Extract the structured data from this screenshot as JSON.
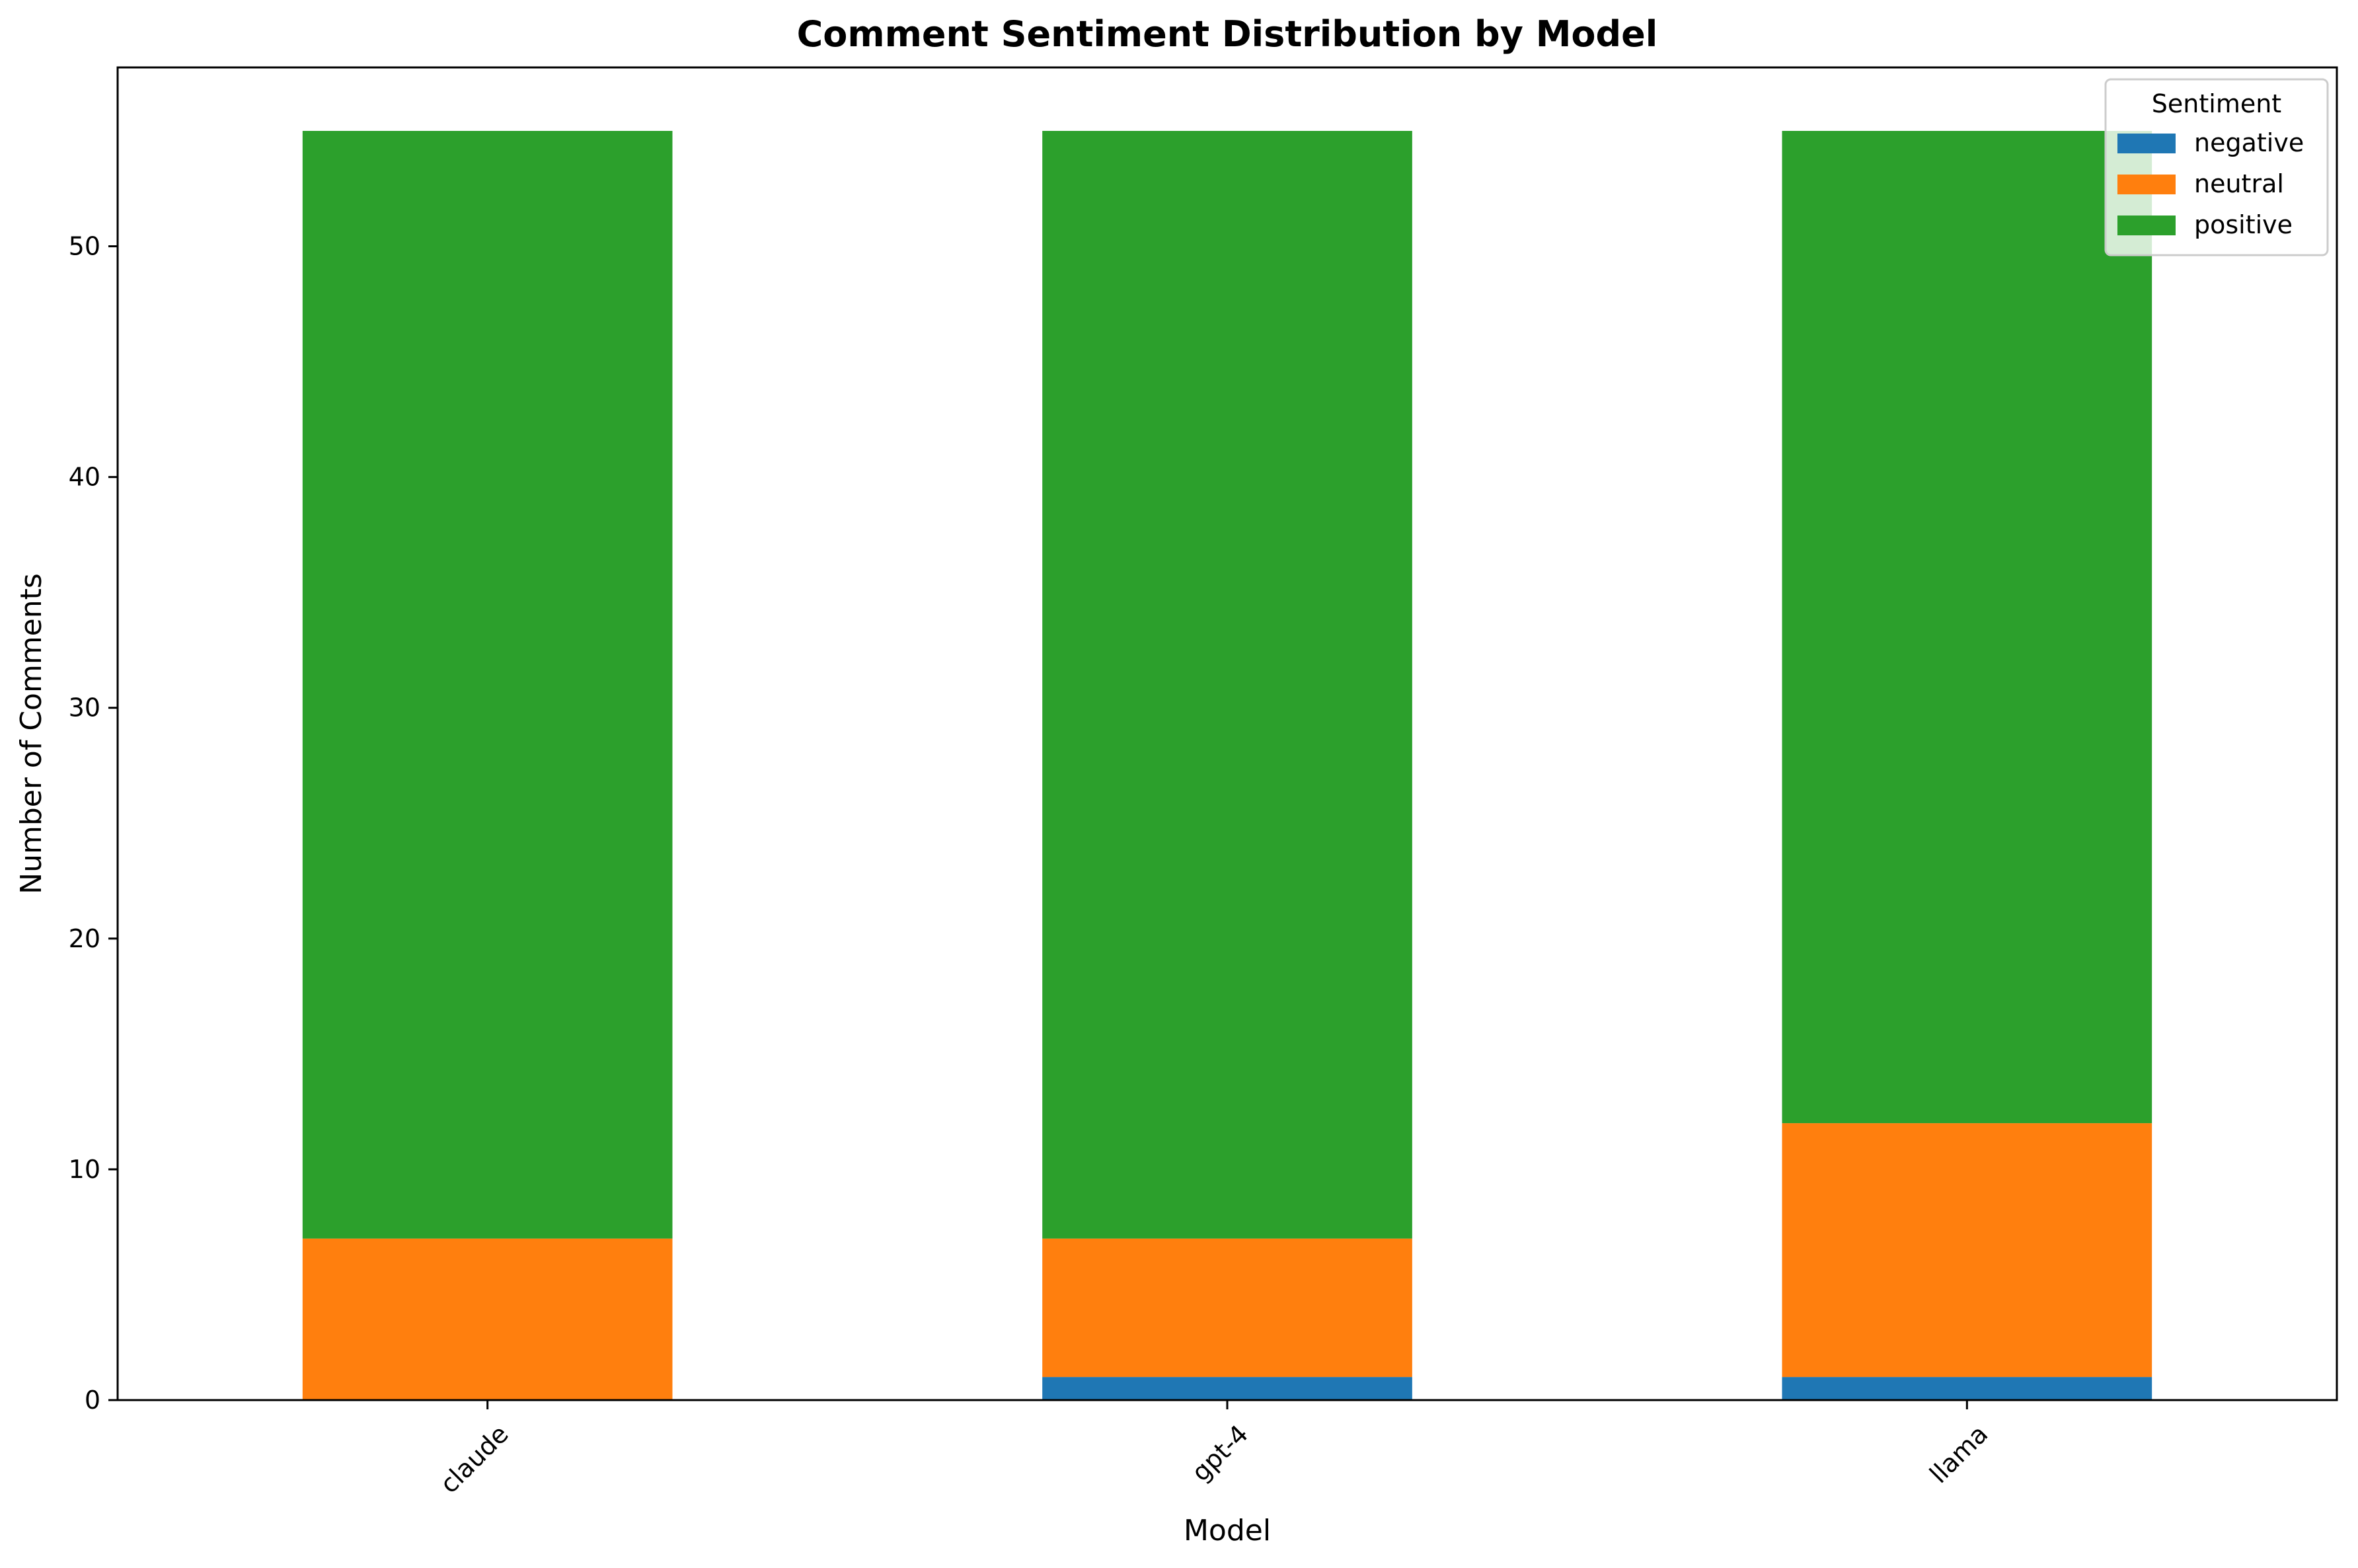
{
  "chart_data": {
    "type": "bar",
    "stacked": true,
    "title": "Comment Sentiment Distribution by Model",
    "xlabel": "Model",
    "ylabel": "Number of Comments",
    "categories": [
      "claude",
      "gpt-4",
      "llama"
    ],
    "series": [
      {
        "name": "negative",
        "color": "#1f77b4",
        "values": [
          0,
          1,
          1
        ]
      },
      {
        "name": "neutral",
        "color": "#ff7f0e",
        "values": [
          7,
          6,
          11
        ]
      },
      {
        "name": "positive",
        "color": "#2ca02c",
        "values": [
          48,
          48,
          43
        ]
      }
    ],
    "ylim": [
      0,
      57.75
    ],
    "yticks": [
      0,
      10,
      20,
      30,
      40,
      50
    ],
    "grid": false,
    "legend": {
      "title": "Sentiment",
      "placement": "top-right"
    }
  }
}
